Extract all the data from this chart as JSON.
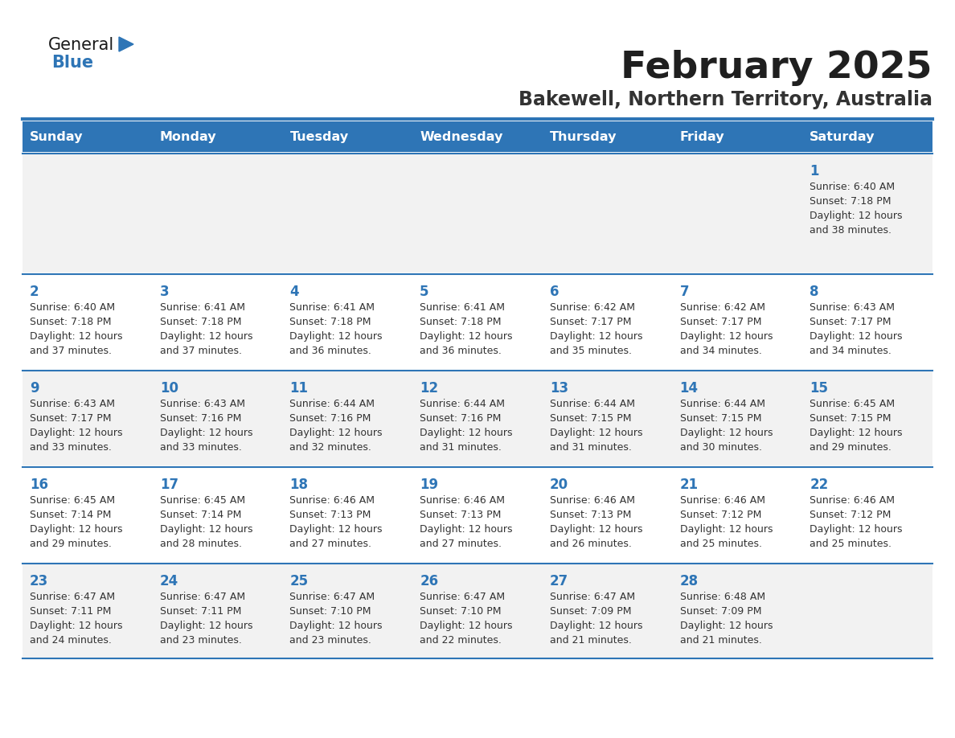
{
  "title": "February 2025",
  "subtitle": "Bakewell, Northern Territory, Australia",
  "header_bg_color": "#2E75B6",
  "header_text_color": "#FFFFFF",
  "cell_bg_color_even": "#F2F2F2",
  "cell_bg_color_odd": "#FFFFFF",
  "border_color": "#2E75B6",
  "day_headers": [
    "Sunday",
    "Monday",
    "Tuesday",
    "Wednesday",
    "Thursday",
    "Friday",
    "Saturday"
  ],
  "title_color": "#1F1F1F",
  "subtitle_color": "#333333",
  "day_num_color": "#2E75B6",
  "text_color": "#333333",
  "calendar": [
    [
      {
        "day": "",
        "sunrise": "",
        "sunset": "",
        "daylight": ""
      },
      {
        "day": "",
        "sunrise": "",
        "sunset": "",
        "daylight": ""
      },
      {
        "day": "",
        "sunrise": "",
        "sunset": "",
        "daylight": ""
      },
      {
        "day": "",
        "sunrise": "",
        "sunset": "",
        "daylight": ""
      },
      {
        "day": "",
        "sunrise": "",
        "sunset": "",
        "daylight": ""
      },
      {
        "day": "",
        "sunrise": "",
        "sunset": "",
        "daylight": ""
      },
      {
        "day": "1",
        "sunrise": "6:40 AM",
        "sunset": "7:18 PM",
        "daylight": "12 hours\nand 38 minutes."
      }
    ],
    [
      {
        "day": "2",
        "sunrise": "6:40 AM",
        "sunset": "7:18 PM",
        "daylight": "12 hours\nand 37 minutes."
      },
      {
        "day": "3",
        "sunrise": "6:41 AM",
        "sunset": "7:18 PM",
        "daylight": "12 hours\nand 37 minutes."
      },
      {
        "day": "4",
        "sunrise": "6:41 AM",
        "sunset": "7:18 PM",
        "daylight": "12 hours\nand 36 minutes."
      },
      {
        "day": "5",
        "sunrise": "6:41 AM",
        "sunset": "7:18 PM",
        "daylight": "12 hours\nand 36 minutes."
      },
      {
        "day": "6",
        "sunrise": "6:42 AM",
        "sunset": "7:17 PM",
        "daylight": "12 hours\nand 35 minutes."
      },
      {
        "day": "7",
        "sunrise": "6:42 AM",
        "sunset": "7:17 PM",
        "daylight": "12 hours\nand 34 minutes."
      },
      {
        "day": "8",
        "sunrise": "6:43 AM",
        "sunset": "7:17 PM",
        "daylight": "12 hours\nand 34 minutes."
      }
    ],
    [
      {
        "day": "9",
        "sunrise": "6:43 AM",
        "sunset": "7:17 PM",
        "daylight": "12 hours\nand 33 minutes."
      },
      {
        "day": "10",
        "sunrise": "6:43 AM",
        "sunset": "7:16 PM",
        "daylight": "12 hours\nand 33 minutes."
      },
      {
        "day": "11",
        "sunrise": "6:44 AM",
        "sunset": "7:16 PM",
        "daylight": "12 hours\nand 32 minutes."
      },
      {
        "day": "12",
        "sunrise": "6:44 AM",
        "sunset": "7:16 PM",
        "daylight": "12 hours\nand 31 minutes."
      },
      {
        "day": "13",
        "sunrise": "6:44 AM",
        "sunset": "7:15 PM",
        "daylight": "12 hours\nand 31 minutes."
      },
      {
        "day": "14",
        "sunrise": "6:44 AM",
        "sunset": "7:15 PM",
        "daylight": "12 hours\nand 30 minutes."
      },
      {
        "day": "15",
        "sunrise": "6:45 AM",
        "sunset": "7:15 PM",
        "daylight": "12 hours\nand 29 minutes."
      }
    ],
    [
      {
        "day": "16",
        "sunrise": "6:45 AM",
        "sunset": "7:14 PM",
        "daylight": "12 hours\nand 29 minutes."
      },
      {
        "day": "17",
        "sunrise": "6:45 AM",
        "sunset": "7:14 PM",
        "daylight": "12 hours\nand 28 minutes."
      },
      {
        "day": "18",
        "sunrise": "6:46 AM",
        "sunset": "7:13 PM",
        "daylight": "12 hours\nand 27 minutes."
      },
      {
        "day": "19",
        "sunrise": "6:46 AM",
        "sunset": "7:13 PM",
        "daylight": "12 hours\nand 27 minutes."
      },
      {
        "day": "20",
        "sunrise": "6:46 AM",
        "sunset": "7:13 PM",
        "daylight": "12 hours\nand 26 minutes."
      },
      {
        "day": "21",
        "sunrise": "6:46 AM",
        "sunset": "7:12 PM",
        "daylight": "12 hours\nand 25 minutes."
      },
      {
        "day": "22",
        "sunrise": "6:46 AM",
        "sunset": "7:12 PM",
        "daylight": "12 hours\nand 25 minutes."
      }
    ],
    [
      {
        "day": "23",
        "sunrise": "6:47 AM",
        "sunset": "7:11 PM",
        "daylight": "12 hours\nand 24 minutes."
      },
      {
        "day": "24",
        "sunrise": "6:47 AM",
        "sunset": "7:11 PM",
        "daylight": "12 hours\nand 23 minutes."
      },
      {
        "day": "25",
        "sunrise": "6:47 AM",
        "sunset": "7:10 PM",
        "daylight": "12 hours\nand 23 minutes."
      },
      {
        "day": "26",
        "sunrise": "6:47 AM",
        "sunset": "7:10 PM",
        "daylight": "12 hours\nand 22 minutes."
      },
      {
        "day": "27",
        "sunrise": "6:47 AM",
        "sunset": "7:09 PM",
        "daylight": "12 hours\nand 21 minutes."
      },
      {
        "day": "28",
        "sunrise": "6:48 AM",
        "sunset": "7:09 PM",
        "daylight": "12 hours\nand 21 minutes."
      },
      {
        "day": "",
        "sunrise": "",
        "sunset": "",
        "daylight": ""
      }
    ]
  ],
  "logo_general_color": "#1a1a1a",
  "logo_blue_color": "#2E75B6",
  "fig_width": 11.88,
  "fig_height": 9.18,
  "dpi": 100
}
